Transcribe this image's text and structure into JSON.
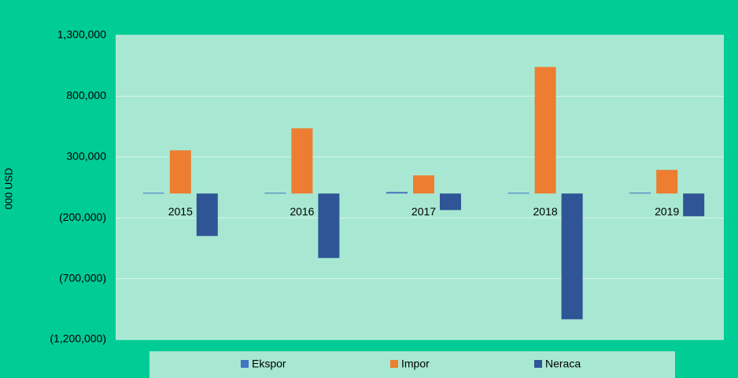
{
  "chart_data": {
    "type": "bar",
    "categories": [
      "2015",
      "2016",
      "2017",
      "2018",
      "2019"
    ],
    "series": [
      {
        "name": "Ekspor",
        "color": "#4472c4",
        "values": [
          6000,
          6000,
          13000,
          6000,
          7000
        ]
      },
      {
        "name": "Impor",
        "color": "#ed7d31",
        "values": [
          355000,
          536000,
          149000,
          1040000,
          194000
        ]
      },
      {
        "name": "Neraca",
        "color": "#2f5597",
        "values": [
          -349000,
          -530000,
          -136000,
          -1034000,
          -187000
        ]
      }
    ],
    "y_label": "000 USD",
    "ylim": [
      -1200000,
      1300000
    ],
    "yticks": [
      {
        "value": -1200000,
        "label": "(1,200,000)"
      },
      {
        "value": -700000,
        "label": "(700,000)"
      },
      {
        "value": -200000,
        "label": "(200,000)"
      },
      {
        "value": 300000,
        "label": "300,000"
      },
      {
        "value": 800000,
        "label": "800,000"
      },
      {
        "value": 1300000,
        "label": "1,300,000"
      }
    ],
    "grid": true,
    "legend": "bottom"
  }
}
